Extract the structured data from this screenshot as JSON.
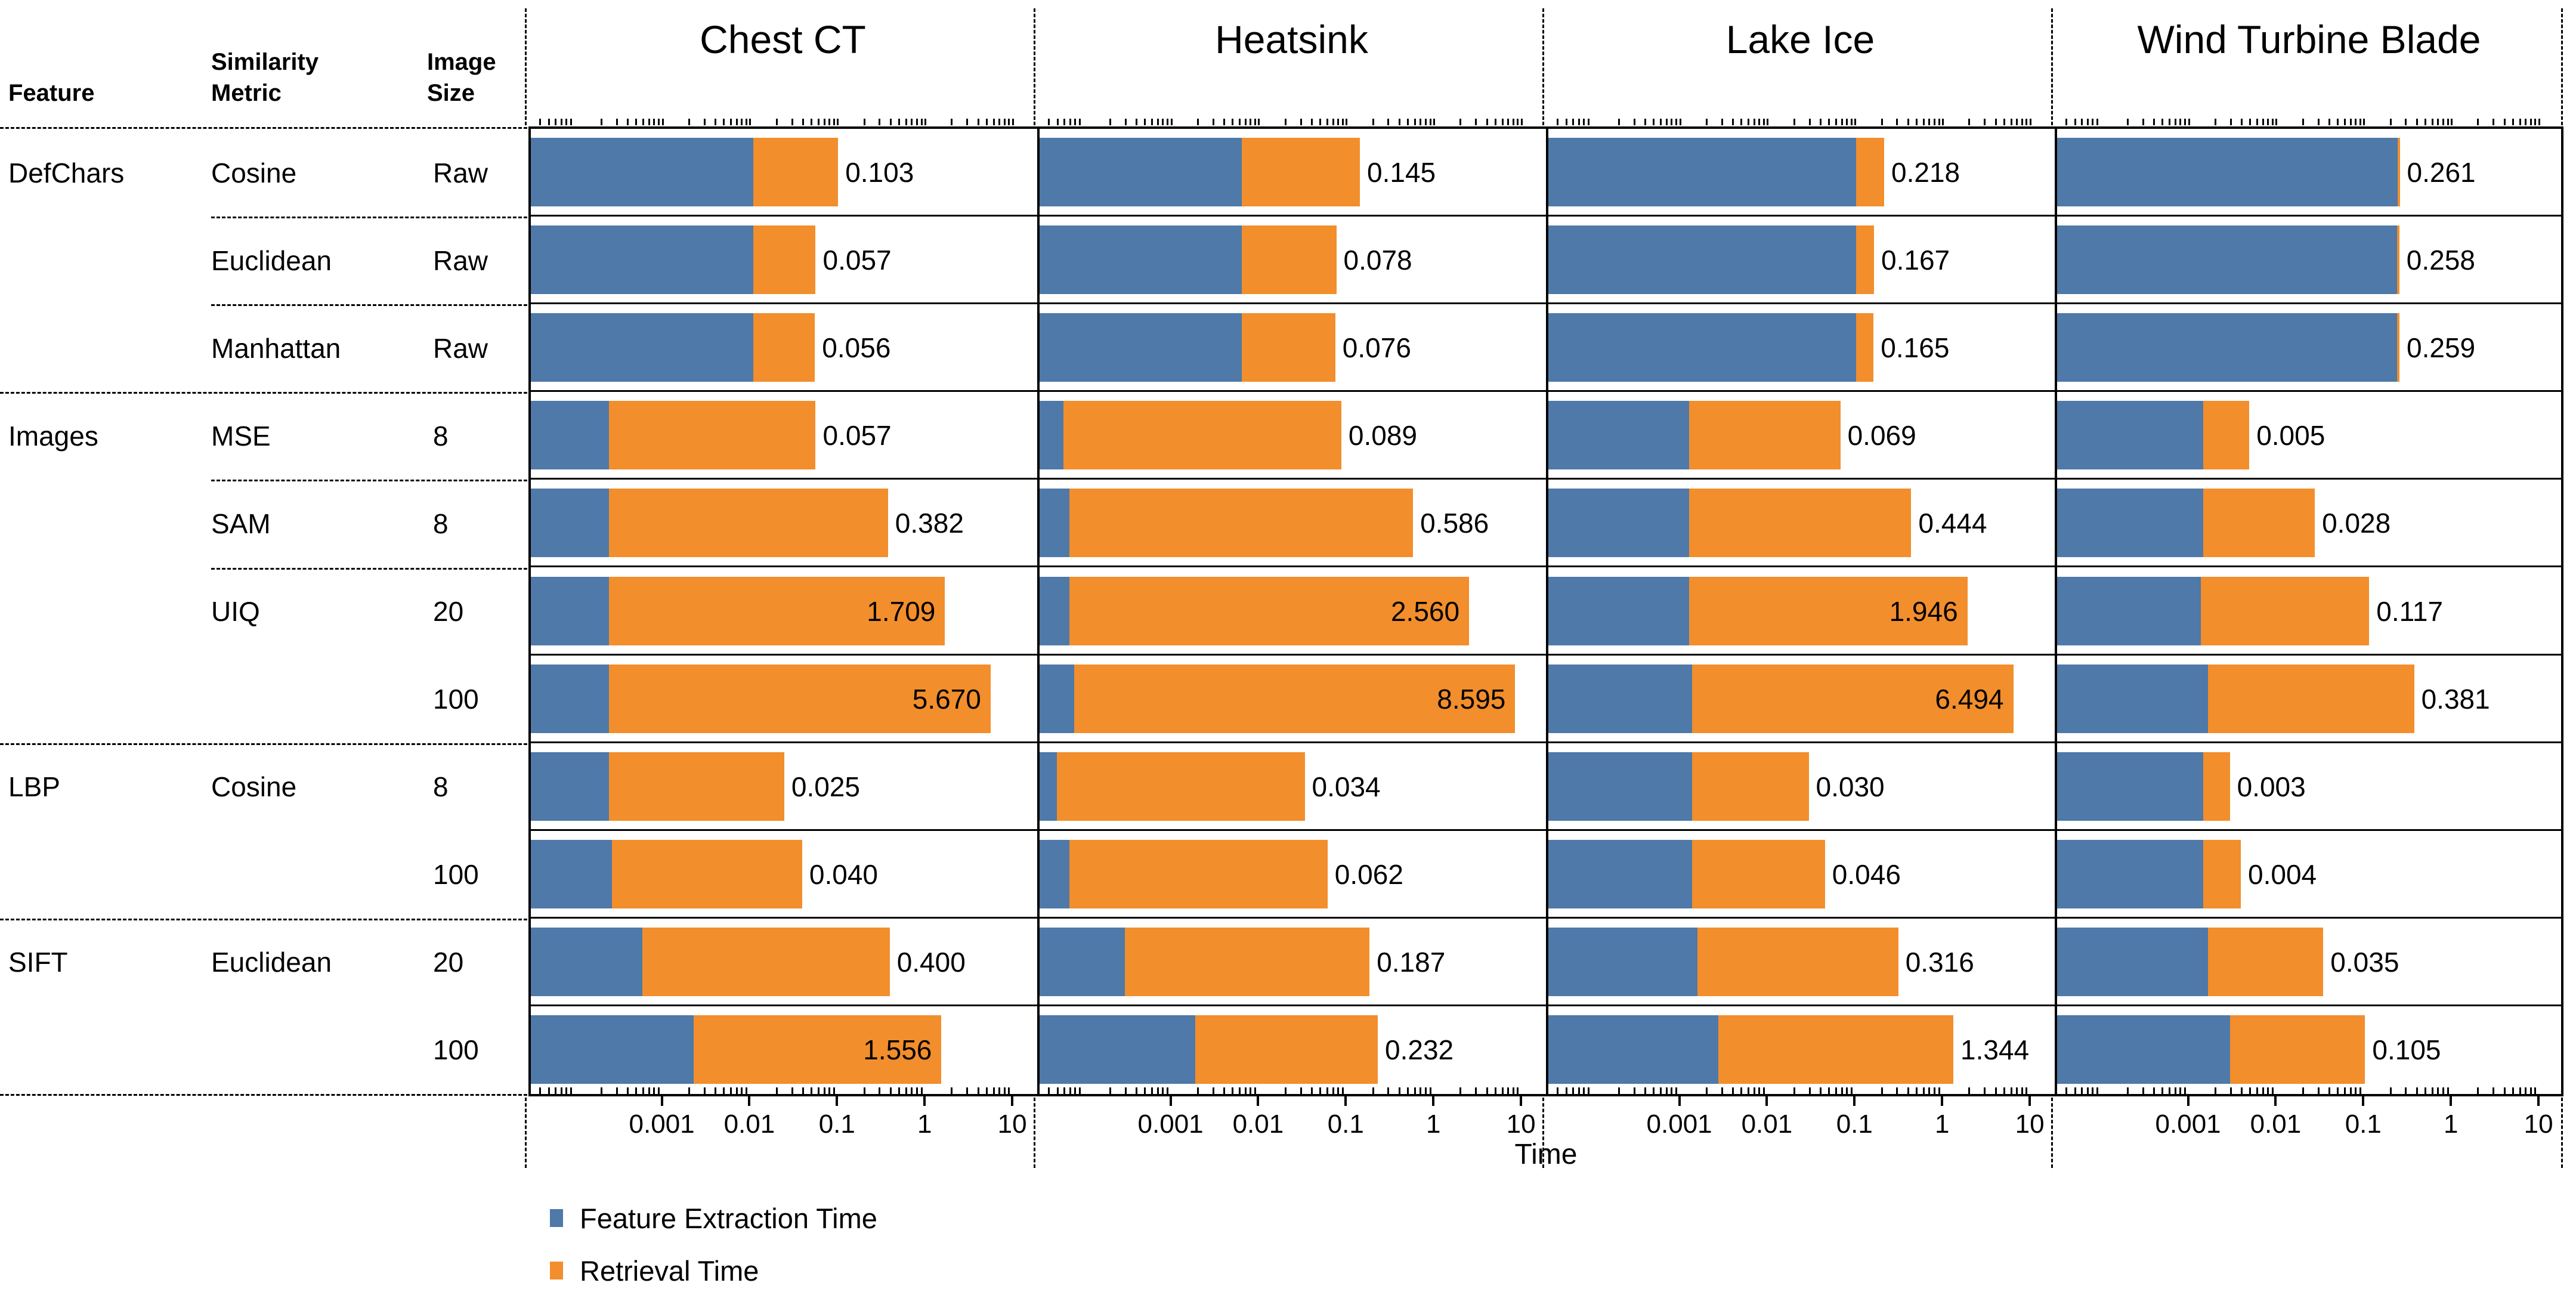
{
  "header": {
    "feature": "Feature",
    "similarity_line1": "Similarity",
    "similarity_line2": "Metric",
    "size_line1": "Image",
    "size_line2": "Size"
  },
  "chart_data": {
    "type": "bar",
    "stacked": true,
    "orientation": "horizontal",
    "xscale": "log",
    "x_domain": [
      3.2e-05,
      19.3
    ],
    "xticks": [
      0.001,
      0.01,
      0.1,
      1,
      10
    ],
    "xtick_labels": [
      "0.001",
      "0.01",
      "0.1",
      "1",
      "10"
    ],
    "xlabel": "Time",
    "grid": false,
    "legend_position": "bottom-left",
    "legend": [
      {
        "name": "Feature Extraction Time",
        "color": "#4e79a8"
      },
      {
        "name": "Retrieval Time",
        "color": "#f28e2c"
      }
    ],
    "colors": {
      "bar_blue": "#4e79a8",
      "bar_orange": "#f28e2c",
      "frame": "#000000",
      "background": "#ffffff"
    },
    "panels": [
      "Chest CT",
      "Heatsink",
      "Lake Ice",
      "Wind Turbine Blade"
    ],
    "rows": [
      {
        "feature": "DefChars",
        "metric": "Cosine",
        "size": "Raw",
        "sep_before": "none"
      },
      {
        "feature": "",
        "metric": "Euclidean",
        "size": "Raw",
        "sep_before": "metric"
      },
      {
        "feature": "",
        "metric": "Manhattan",
        "size": "Raw",
        "sep_before": "metric"
      },
      {
        "feature": "Images",
        "metric": "MSE",
        "size": "8",
        "sep_before": "feature"
      },
      {
        "feature": "",
        "metric": "SAM",
        "size": "8",
        "sep_before": "metric"
      },
      {
        "feature": "",
        "metric": "UIQ",
        "size": "20",
        "sep_before": "metric"
      },
      {
        "feature": "",
        "metric": "",
        "size": "100",
        "sep_before": "none"
      },
      {
        "feature": "LBP",
        "metric": "Cosine",
        "size": "8",
        "sep_before": "feature"
      },
      {
        "feature": "",
        "metric": "",
        "size": "100",
        "sep_before": "none"
      },
      {
        "feature": "SIFT",
        "metric": "Euclidean",
        "size": "20",
        "sep_before": "feature"
      },
      {
        "feature": "",
        "metric": "",
        "size": "100",
        "sep_before": "none"
      }
    ],
    "series": [
      {
        "panel": "Chest CT",
        "extraction": [
          0.011,
          0.011,
          0.011,
          0.00025,
          0.00025,
          0.00025,
          0.00025,
          0.00025,
          0.00027,
          0.0006,
          0.0023
        ],
        "total": [
          0.103,
          0.057,
          0.056,
          0.057,
          0.382,
          1.709,
          5.67,
          0.025,
          0.04,
          0.4,
          1.556
        ]
      },
      {
        "panel": "Heatsink",
        "extraction": [
          0.0065,
          0.0065,
          0.0065,
          6e-05,
          7e-05,
          7e-05,
          8e-05,
          5e-05,
          7e-05,
          0.0003,
          0.0019
        ],
        "total": [
          0.145,
          0.078,
          0.076,
          0.089,
          0.586,
          2.56,
          8.595,
          0.034,
          0.062,
          0.187,
          0.232
        ]
      },
      {
        "panel": "Lake Ice",
        "extraction": [
          0.105,
          0.105,
          0.105,
          0.0013,
          0.0013,
          0.0013,
          0.0014,
          0.0014,
          0.0014,
          0.0016,
          0.0028
        ],
        "total": [
          0.218,
          0.167,
          0.165,
          0.069,
          0.444,
          1.946,
          6.494,
          0.03,
          0.046,
          0.316,
          1.344
        ]
      },
      {
        "panel": "Wind Turbine Blade",
        "extraction": [
          0.245,
          0.242,
          0.243,
          0.0015,
          0.0015,
          0.0014,
          0.0017,
          0.0015,
          0.0015,
          0.0017,
          0.003
        ],
        "total": [
          0.261,
          0.258,
          0.259,
          0.005,
          0.028,
          0.117,
          0.381,
          0.003,
          0.004,
          0.035,
          0.105
        ]
      }
    ]
  }
}
